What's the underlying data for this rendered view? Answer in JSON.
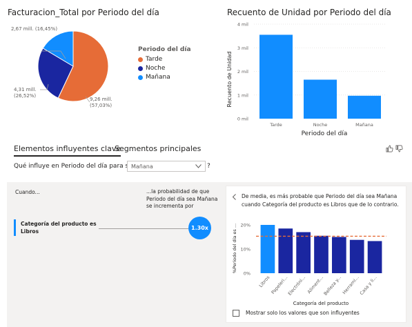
{
  "pie_title": "Facturacion_Total por Periodo del día",
  "pie_labels": {
    "manana": "2,67 mill. (16,45%)",
    "noche_value": "4,31 mill.",
    "noche_pct": "(26,52%)",
    "tarde_value": "9,26 mill.",
    "tarde_pct": "(57,03%)"
  },
  "legend": {
    "title": "Periodo del día",
    "items": [
      {
        "label": "Tarde",
        "color": "#e66c37"
      },
      {
        "label": "Noche",
        "color": "#1a26a0"
      },
      {
        "label": "Mañana",
        "color": "#118dff"
      }
    ]
  },
  "bar_title": "Recuento de Unidad por Periodo del día",
  "chart_data": [
    {
      "type": "pie",
      "title": "Facturacion_Total por Periodo del día",
      "categories": [
        "Tarde",
        "Noche",
        "Mañana"
      ],
      "values": [
        9.26,
        4.31,
        2.67
      ],
      "percents": [
        57.03,
        26.52,
        16.45
      ],
      "unit": "mill.",
      "colors": [
        "#e66c37",
        "#1a26a0",
        "#118dff"
      ]
    },
    {
      "type": "bar",
      "title": "Recuento de Unidad por Periodo del día",
      "categories": [
        "Tarde",
        "Noche",
        "Mañana"
      ],
      "values": [
        3.55,
        1.65,
        0.97
      ],
      "unit": "mil",
      "xlabel": "Periodo del día",
      "ylabel": "Recuento de Unidad",
      "ylim": [
        0,
        4
      ],
      "yticks": [
        "0 mil",
        "1 mil",
        "2 mil",
        "3 mil",
        "4 mil"
      ],
      "color": "#118dff"
    },
    {
      "type": "bar",
      "categories": [
        "Libros",
        "Papeleri...",
        "Electróni...",
        "Aliment...",
        "Belleza y...",
        "Herrami...",
        "Casa y li..."
      ],
      "values": [
        20,
        18.5,
        17,
        15.5,
        15,
        13.8,
        13.3
      ],
      "highlight_index": 0,
      "average": 15.3,
      "ylim": [
        0,
        20
      ],
      "yticks": [
        "0%",
        "10%",
        "20%"
      ],
      "xlabel": "Categoría del producto",
      "ylabel": "%Periodo del día es ...",
      "colors": {
        "highlight": "#118dff",
        "other": "#1a26a0",
        "average_line": "#e66c37"
      }
    }
  ],
  "key_influencers": {
    "tabs": [
      {
        "label": "Elementos influyentes clave"
      },
      {
        "label": "Segmentos principales"
      }
    ],
    "question_prefix": "Qué influye en Periodo del día para ser",
    "question_value": "Mañana",
    "question_suffix": "?",
    "col_when": "Cuando...",
    "col_prob": "...la probabilidad de que Periodo del día sea Mañana se incrementa por",
    "influencer_label": "Categoría del producto es Libros",
    "influencer_value": "1.30x",
    "detail_text": "De media, es más probable que Periodo del día sea Mañana cuando Categoría del producto es Libros que de lo contrario.",
    "checkbox_label": "Mostrar solo los valores que son influyentes"
  }
}
